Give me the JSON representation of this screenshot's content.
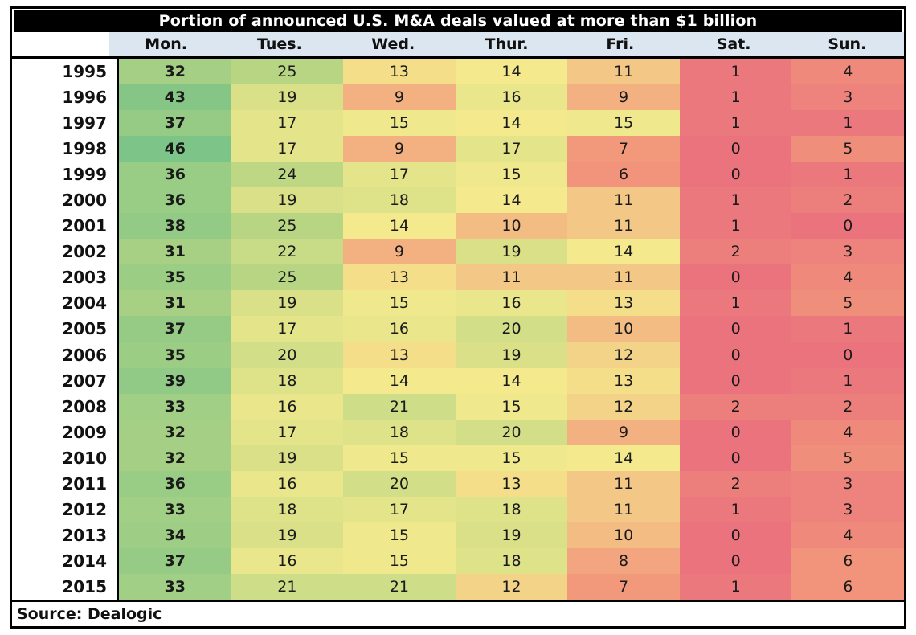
{
  "chart_data": {
    "type": "heatmap",
    "title": "Portion of announced U.S. M&A deals valued at more than $1 billion",
    "source": "Source: Dealogic",
    "columns": [
      "Mon.",
      "Tues.",
      "Wed.",
      "Thur.",
      "Fri.",
      "Sat.",
      "Sun."
    ],
    "rows": [
      "1995",
      "1996",
      "1997",
      "1998",
      "1999",
      "2000",
      "2001",
      "2002",
      "2003",
      "2004",
      "2005",
      "2006",
      "2007",
      "2008",
      "2009",
      "2010",
      "2011",
      "2012",
      "2013",
      "2014",
      "2015"
    ],
    "values": [
      [
        32,
        25,
        13,
        14,
        11,
        1,
        4
      ],
      [
        43,
        19,
        9,
        16,
        9,
        1,
        3
      ],
      [
        37,
        17,
        15,
        14,
        15,
        1,
        1
      ],
      [
        46,
        17,
        9,
        17,
        7,
        0,
        5
      ],
      [
        36,
        24,
        17,
        15,
        6,
        0,
        1
      ],
      [
        36,
        19,
        18,
        14,
        11,
        1,
        2
      ],
      [
        38,
        25,
        14,
        10,
        11,
        1,
        0
      ],
      [
        31,
        22,
        9,
        19,
        14,
        2,
        3
      ],
      [
        35,
        25,
        13,
        11,
        11,
        0,
        4
      ],
      [
        31,
        19,
        15,
        16,
        13,
        1,
        5
      ],
      [
        37,
        17,
        16,
        20,
        10,
        0,
        1
      ],
      [
        35,
        20,
        13,
        19,
        12,
        0,
        0
      ],
      [
        39,
        18,
        14,
        14,
        13,
        0,
        1
      ],
      [
        33,
        16,
        21,
        15,
        12,
        2,
        2
      ],
      [
        32,
        17,
        18,
        20,
        9,
        0,
        4
      ],
      [
        32,
        19,
        15,
        15,
        14,
        0,
        5
      ],
      [
        36,
        16,
        20,
        13,
        11,
        2,
        3
      ],
      [
        33,
        18,
        17,
        18,
        11,
        1,
        3
      ],
      [
        34,
        19,
        15,
        19,
        10,
        0,
        4
      ],
      [
        37,
        16,
        15,
        18,
        8,
        0,
        6
      ],
      [
        33,
        21,
        21,
        12,
        7,
        1,
        6
      ]
    ],
    "value_range": [
      0,
      46
    ],
    "color_scale_stops": [
      {
        "value": 0,
        "color": "#EA737D"
      },
      {
        "value": 7,
        "color": "#F2997B"
      },
      {
        "value": 14,
        "color": "#F4EA8D"
      },
      {
        "value": 25,
        "color": "#B8D583"
      },
      {
        "value": 46,
        "color": "#7CC487"
      }
    ],
    "legend_position": "none",
    "grid": false
  },
  "colors": {
    "header_bg": "#DCE6F1",
    "title_bg": "#000000",
    "title_fg": "#FFFFFF",
    "border": "#000000",
    "text": "#1A1A1A"
  }
}
